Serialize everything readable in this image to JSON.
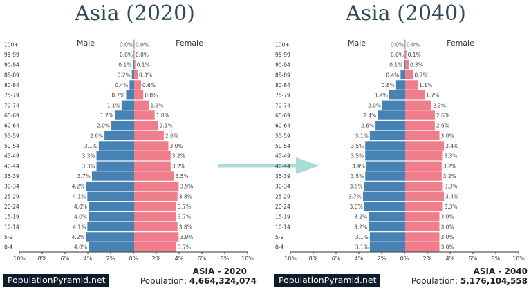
{
  "chart_data": [
    {
      "type": "bar",
      "title": "Asia (2020)",
      "categories": [
        "100+",
        "95-99",
        "90-94",
        "85-89",
        "80-84",
        "75-79",
        "70-74",
        "65-69",
        "60-64",
        "55-59",
        "50-54",
        "45-49",
        "40-44",
        "35-39",
        "30-34",
        "25-29",
        "20-24",
        "15-19",
        "10-14",
        "5-9",
        "0-4"
      ],
      "series": [
        {
          "name": "Male",
          "color": "#4682b4",
          "values": [
            0.0,
            0.0,
            0.1,
            0.2,
            0.4,
            0.7,
            1.1,
            1.7,
            2.0,
            2.6,
            3.1,
            3.3,
            3.3,
            3.7,
            4.2,
            4.1,
            4.0,
            4.0,
            4.1,
            4.2,
            4.0
          ]
        },
        {
          "name": "Female",
          "color": "#ef7d8a",
          "values": [
            0.0,
            0.0,
            0.1,
            0.3,
            0.6,
            0.8,
            1.3,
            1.8,
            2.1,
            2.6,
            3.0,
            3.2,
            3.2,
            3.5,
            3.9,
            3.8,
            3.7,
            3.7,
            3.8,
            3.9,
            3.7
          ]
        }
      ],
      "xticks": [
        "10%",
        "8%",
        "6%",
        "4%",
        "2%",
        "0%",
        "2%",
        "4%",
        "6%",
        "8%",
        "10%"
      ],
      "xlim": [
        -10,
        10
      ],
      "region_label": "ASIA - 2020",
      "population_label": "Population:",
      "population": "4,664,324,074"
    },
    {
      "type": "bar",
      "title": "Asia (2040)",
      "categories": [
        "100+",
        "95-99",
        "90-94",
        "85-89",
        "80-84",
        "75-79",
        "70-74",
        "65-69",
        "60-64",
        "55-59",
        "50-54",
        "45-49",
        "40-44",
        "35-39",
        "30-34",
        "25-29",
        "20-24",
        "15-19",
        "10-14",
        "5-9",
        "0-4"
      ],
      "series": [
        {
          "name": "Male",
          "color": "#4682b4",
          "values": [
            0.0,
            0.0,
            0.1,
            0.4,
            0.8,
            1.4,
            2.0,
            2.4,
            2.6,
            3.1,
            3.5,
            3.5,
            3.4,
            3.5,
            3.6,
            3.7,
            3.6,
            3.2,
            3.2,
            3.1,
            3.1
          ]
        },
        {
          "name": "Female",
          "color": "#ef7d8a",
          "values": [
            0.0,
            0.1,
            0.3,
            0.7,
            1.1,
            1.7,
            2.3,
            2.6,
            2.6,
            3.0,
            3.4,
            3.3,
            3.2,
            3.2,
            3.3,
            3.4,
            3.3,
            3.0,
            3.0,
            3.0,
            3.0
          ]
        }
      ],
      "xticks": [
        "10%",
        "8%",
        "6%",
        "4%",
        "2%",
        "0%",
        "2%",
        "4%",
        "6%",
        "8%",
        "10%"
      ],
      "xlim": [
        -10,
        10
      ],
      "region_label": "ASIA - 2040",
      "population_label": "Population:",
      "population": "5,176,104,558"
    }
  ],
  "brand": "PopulationPyramid.net",
  "arrow_color": "#a8dcd9"
}
